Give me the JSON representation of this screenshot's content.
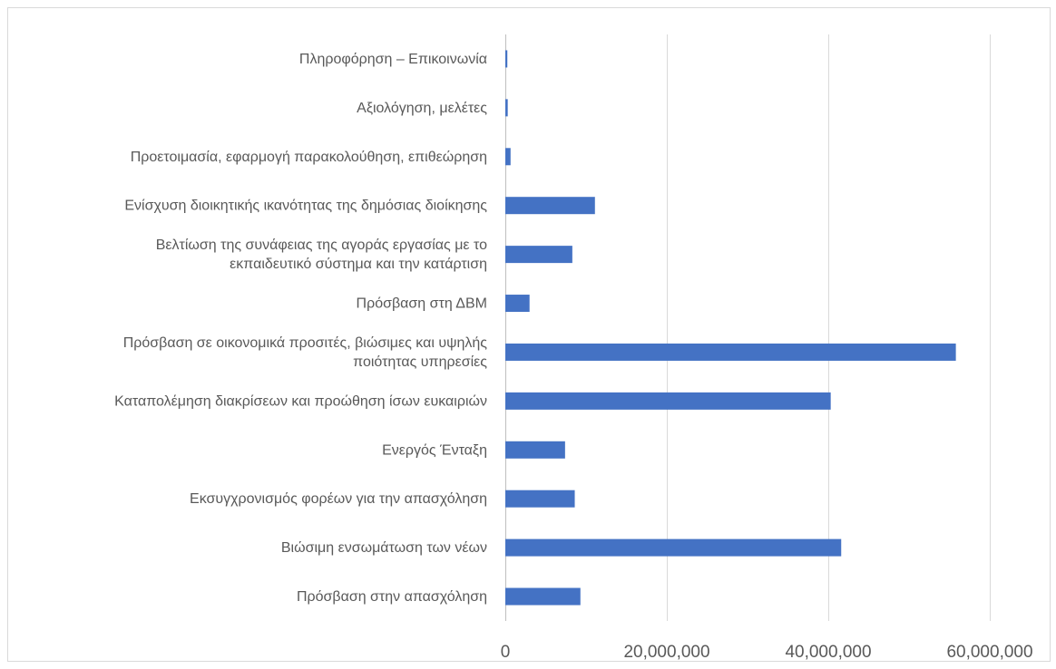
{
  "chart_data": {
    "type": "bar",
    "orientation": "horizontal",
    "categories": [
      "Πληροφόρηση – Επικοινωνία",
      "Αξιολόγηση, μελέτες",
      "Προετοιμασία, εφαρμογή παρακολούθηση, επιθεώρηση",
      "Ενίσχυση διοικητικής ικανότητας της δημόσιας διοίκησης",
      "Βελτίωση της συνάφειας της αγοράς εργασίας με το εκπαιδευτικό σύστημα και την κατάρτιση",
      "Πρόσβαση στη ΔΒΜ",
      "Πρόσβαση σε οικονομικά προσιτές, βιώσιμες και υψηλής ποιότητας υπηρεσίες",
      "Καταπολέμηση διακρίσεων και προώθηση ίσων ευκαιριών",
      "Ενεργός Ένταξη",
      "Εκσυγχρονισμός φορέων για την απασχόληση",
      "Βιώσιμη ενσωμάτωση των νέων",
      "Πρόσβαση στην απασχόληση"
    ],
    "category_lines": [
      [
        "Πληροφόρηση – Επικοινωνία"
      ],
      [
        "Αξιολόγηση, μελέτες"
      ],
      [
        "Προετοιμασία, εφαρμογή παρακολούθηση, επιθεώρηση"
      ],
      [
        "Ενίσχυση διοικητικής ικανότητας της δημόσιας διοίκησης"
      ],
      [
        "Βελτίωση της συνάφειας της αγοράς εργασίας με το",
        "εκπαιδευτικό σύστημα και την κατάρτιση"
      ],
      [
        "Πρόσβαση στη ΔΒΜ"
      ],
      [
        "Πρόσβαση σε οικονομικά προσιτές, βιώσιμες και υψηλής",
        "ποιότητας υπηρεσίες"
      ],
      [
        "Καταπολέμηση διακρίσεων και προώθηση ίσων ευκαιριών"
      ],
      [
        "Ενεργός Ένταξη"
      ],
      [
        "Εκσυγχρονισμός φορέων για την απασχόληση"
      ],
      [
        "Βιώσιμη ενσωμάτωση των νέων"
      ],
      [
        "Πρόσβαση στην απασχόληση"
      ]
    ],
    "values": [
      250000,
      300000,
      650000,
      11100000,
      8300000,
      3000000,
      55800000,
      40300000,
      7400000,
      8600000,
      41600000,
      9300000
    ],
    "xlim": [
      0,
      60000000
    ],
    "xticks": [
      0,
      20000000,
      40000000,
      60000000
    ],
    "xtick_labels": [
      "0",
      "20,000,000",
      "40,000,000",
      "60,000,000"
    ],
    "title": "",
    "xlabel": "",
    "ylabel": "",
    "grid": "vertical",
    "legend": "none",
    "bar_color": "#4472c4",
    "grid_color": "#d9d9d9"
  }
}
